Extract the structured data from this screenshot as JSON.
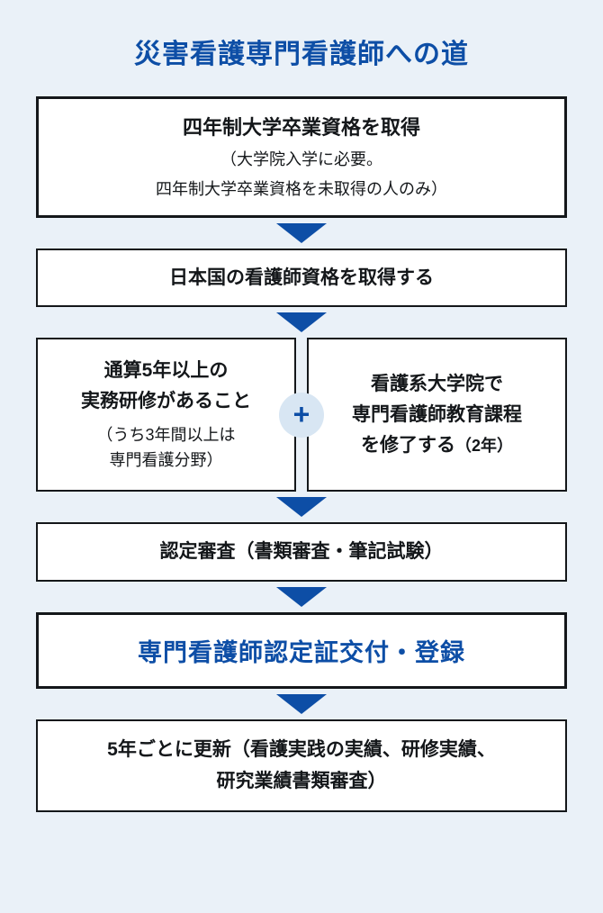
{
  "colors": {
    "bg": "#eaf1f8",
    "box_bg": "#ffffff",
    "border": "#14171a",
    "text": "#14171a",
    "accent": "#0d4ea6",
    "arrow": "#0d4ea6",
    "plus_bg": "#d8e6f3",
    "plus_fg": "#0d4ea6"
  },
  "layout": {
    "arrow_border_top": "22px"
  },
  "title": "災害看護専門看護師への道",
  "box1": {
    "title": "四年制大学卒業資格を取得",
    "sub1": "（大学院入学に必要。",
    "sub2": "四年制大学卒業資格を未取得の人のみ）"
  },
  "box2": {
    "title": "日本国の看護師資格を取得する"
  },
  "split": {
    "left": {
      "title1": "通算5年以上の",
      "title2": "実務研修があること",
      "sub1": "（うち3年間以上は",
      "sub2": "専門看護分野）"
    },
    "right": {
      "title1": "看護系大学院で",
      "title2": "専門看護師教育課程",
      "title3_prefix": "を修了する",
      "title3_suffix": "（2年）"
    },
    "plus": "+"
  },
  "box4": {
    "title": "認定審査（書類審査・筆記試験）"
  },
  "box5": {
    "title": "専門看護師認定証交付・登録"
  },
  "box6": {
    "line1": "5年ごとに更新（看護実践の実績、研修実績、",
    "line2": "研究業績書類審査）"
  }
}
